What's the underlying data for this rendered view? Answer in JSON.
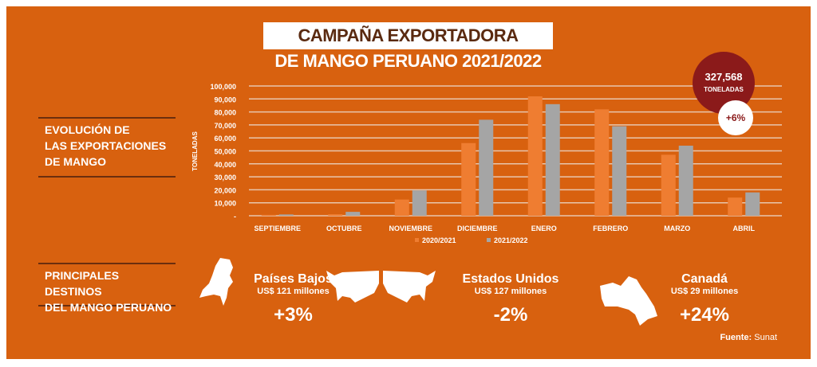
{
  "title_line1": "CAMPAÑA EXPORTADORA",
  "title_line2": "DE MANGO PERUANO 2021/2022",
  "section1": [
    "EVOLUCIÓN DE",
    "LAS EXPORTACIONES",
    "DE MANGO"
  ],
  "section2": [
    "PRINCIPALES DESTINOS",
    "DEL MANGO PERUANO"
  ],
  "badge": {
    "total": "327,568",
    "unit": "TONELADAS",
    "change": "+6%"
  },
  "chart_data": {
    "type": "bar",
    "ylabel": "TONELADAS",
    "ylim": [
      0,
      100000
    ],
    "yticks": [
      "-",
      "10,000",
      "20,000",
      "30,000",
      "40,000",
      "50,000",
      "60,000",
      "70,000",
      "80,000",
      "90,000",
      "100,000"
    ],
    "categories": [
      "SEPTIEMBRE",
      "OCTUBRE",
      "NOVIEMBRE",
      "DICIEMBRE",
      "ENERO",
      "FEBRERO",
      "MARZO",
      "ABRIL"
    ],
    "series": [
      {
        "name": "2020/2021",
        "color": "#ef7d31",
        "values": [
          700,
          1200,
          12500,
          56000,
          92000,
          82000,
          47000,
          14000
        ]
      },
      {
        "name": "2021/2022",
        "color": "#a5a5a5",
        "values": [
          1000,
          3000,
          19500,
          74000,
          86000,
          69000,
          54000,
          18000
        ]
      }
    ],
    "legend": "bottom",
    "grid": true
  },
  "destinations": [
    {
      "name": "Países Bajos",
      "value": "US$ 121 millones",
      "change": "+3%",
      "icon": "netherlands-map-icon"
    },
    {
      "name": "Estados Unidos",
      "value": "US$ 127 millones",
      "change": "-2%",
      "icon": "usa-map-icon"
    },
    {
      "name": "Canadá",
      "value": "US$ 29 millones",
      "change": "+24%",
      "icon": "canada-map-icon"
    }
  ],
  "source_label": "Fuente:",
  "source": "Sunat"
}
